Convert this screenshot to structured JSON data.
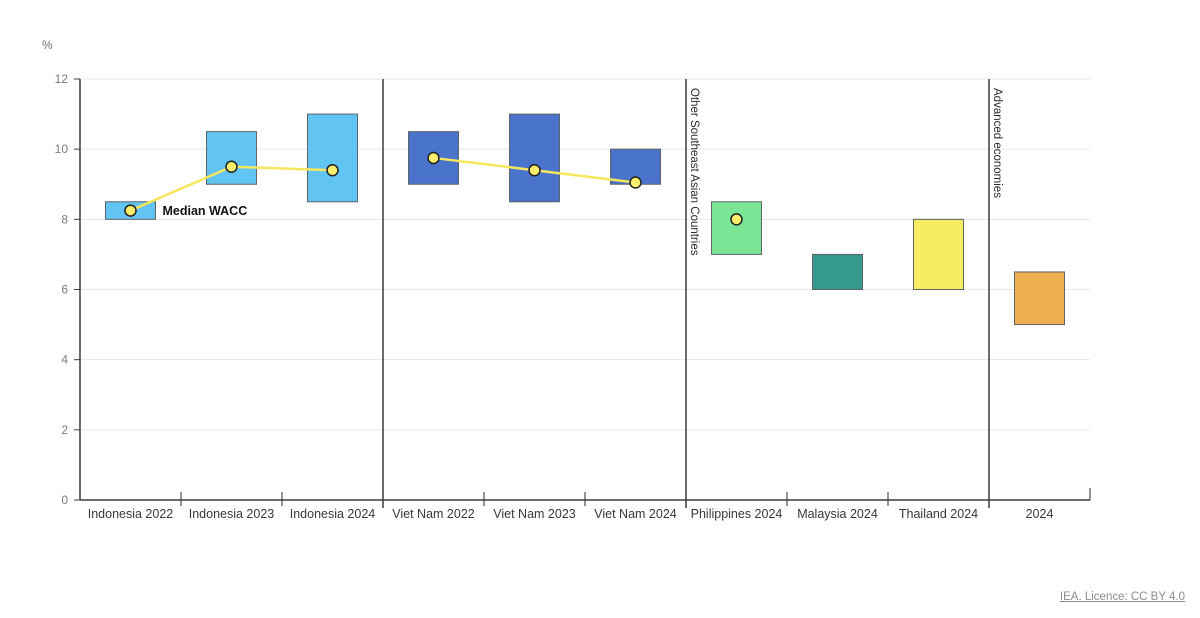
{
  "footer": {
    "license_label": "IEA. Licence: CC BY 4.0"
  },
  "chart_data": {
    "type": "range-bar",
    "unit_label": "%",
    "ylim": [
      0,
      12
    ],
    "yticks": [
      0,
      2,
      4,
      6,
      8,
      10,
      12
    ],
    "grid": "horizontal",
    "legend_position": "none",
    "annotation": "Median WACC",
    "categories": [
      "Indonesia 2022",
      "Indonesia 2023",
      "Indonesia 2024",
      "Viet Nam 2022",
      "Viet Nam 2023",
      "Viet Nam 2024",
      "Philippines 2024",
      "Malaysia 2024",
      "Thailand 2024",
      "2024"
    ],
    "bars": [
      {
        "label": "Indonesia 2022",
        "group": "Indonesia",
        "low": 8.0,
        "high": 8.5,
        "median": 8.25,
        "fill": "#62c4f2"
      },
      {
        "label": "Indonesia 2023",
        "group": "Indonesia",
        "low": 9.0,
        "high": 10.5,
        "median": 9.5,
        "fill": "#62c4f2"
      },
      {
        "label": "Indonesia 2024",
        "group": "Indonesia",
        "low": 8.5,
        "high": 11.0,
        "median": 9.4,
        "fill": "#62c4f2"
      },
      {
        "label": "Viet Nam 2022",
        "group": "Viet Nam",
        "low": 9.0,
        "high": 10.5,
        "median": 9.75,
        "fill": "#4a73cb"
      },
      {
        "label": "Viet Nam 2023",
        "group": "Viet Nam",
        "low": 8.5,
        "high": 11.0,
        "median": 9.4,
        "fill": "#4a73cb"
      },
      {
        "label": "Viet Nam 2024",
        "group": "Viet Nam",
        "low": 9.0,
        "high": 10.0,
        "median": 9.05,
        "fill": "#4a73cb"
      },
      {
        "label": "Philippines 2024",
        "group": "Other Southeast Asian Countries",
        "low": 7.0,
        "high": 8.5,
        "median": 8.0,
        "fill": "#7ce595"
      },
      {
        "label": "Malaysia 2024",
        "group": "Other Southeast Asian Countries",
        "low": 6.0,
        "high": 7.0,
        "median": null,
        "fill": "#35998c"
      },
      {
        "label": "Thailand 2024",
        "group": "Other Southeast Asian Countries",
        "low": 6.0,
        "high": 8.0,
        "median": null,
        "fill": "#f8ec62"
      },
      {
        "label": "2024",
        "group": "Advanced economies",
        "low": 5.0,
        "high": 6.5,
        "median": null,
        "fill": "#f0b04f"
      }
    ],
    "median_line_groups": [
      [
        0,
        1,
        2
      ],
      [
        3,
        4,
        5
      ]
    ],
    "group_separators": [
      {
        "after_index": 2,
        "label": ""
      },
      {
        "after_index": 5,
        "label": "Other Southeast Asian Countries"
      },
      {
        "after_index": 8,
        "label": "Advanced economies"
      }
    ],
    "colors": {
      "grid": "#e7e7e7",
      "axis": "#3c3c3c",
      "separator": "#3c3c3c",
      "tick": "#4d4d4d",
      "bar_stroke": "#5e6468",
      "median_line": "#f7e75e",
      "median_dot_fill": "#fbee6c",
      "median_dot_stroke": "#222222"
    }
  }
}
